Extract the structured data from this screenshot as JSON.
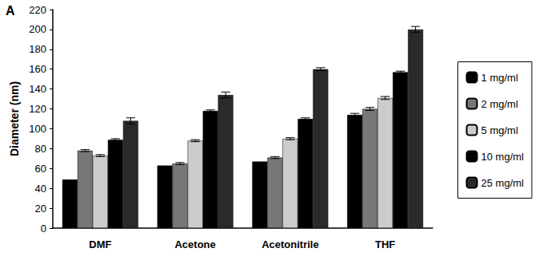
{
  "chart_data": {
    "type": "bar",
    "title": "A",
    "y_label": "Diameter (nm)",
    "categories": [
      "DMF",
      "Acetone",
      "Acetonitrile",
      "THF"
    ],
    "series": [
      {
        "name": "1 mg/ml",
        "color": "#000000",
        "values": [
          49,
          63,
          67,
          114
        ],
        "errors": [
          0,
          0,
          0,
          1.5
        ]
      },
      {
        "name": "2 mg/ml",
        "color": "#777777",
        "values": [
          78,
          65,
          71,
          120
        ],
        "errors": [
          1,
          1,
          1,
          1.5
        ]
      },
      {
        "name": "5 mg/ml",
        "color": "#cccccc",
        "values": [
          73,
          88,
          90,
          131
        ],
        "errors": [
          1,
          1,
          1,
          1.5
        ]
      },
      {
        "name": "10 mg/ml",
        "color": "#000000",
        "values": [
          89,
          118,
          110,
          157
        ],
        "errors": [
          1,
          1,
          1,
          1
        ]
      },
      {
        "name": "25 mg/ml",
        "color": "#2a2a2a",
        "values": [
          108,
          134,
          160,
          200
        ],
        "errors": [
          3,
          3,
          1.5,
          3
        ]
      }
    ],
    "ylim": [
      0,
      220
    ],
    "yticks": [
      0,
      20,
      40,
      60,
      80,
      100,
      120,
      140,
      160,
      180,
      200,
      220
    ],
    "grid": false,
    "legend": "right"
  }
}
